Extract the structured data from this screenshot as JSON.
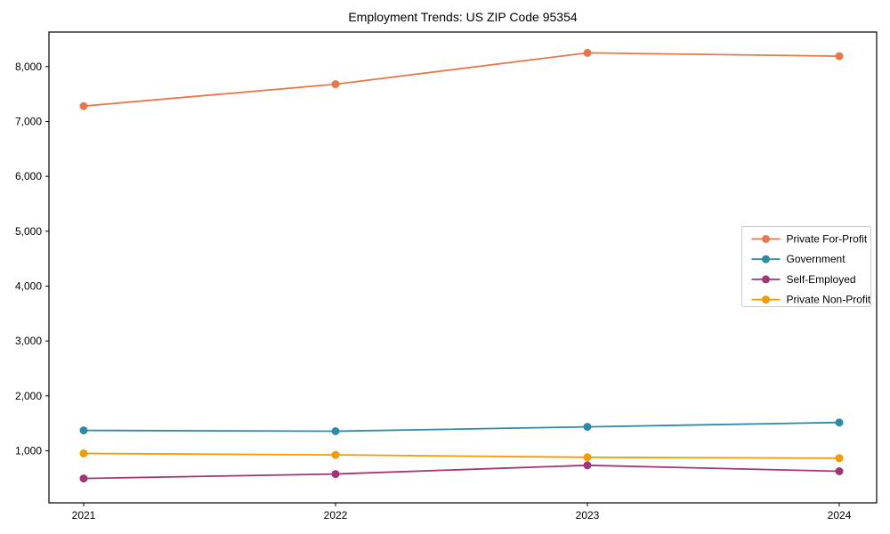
{
  "page": {
    "background": "#ffffff",
    "axis_color": "#000000",
    "legend_border_color": "#cccccc",
    "legend_background": "#ffffff"
  },
  "chart_data": {
    "type": "line",
    "title": "Employment Trends: US ZIP Code 95354",
    "xlabel": "",
    "ylabel": "",
    "x_categories": [
      "2021",
      "2022",
      "2023",
      "2024"
    ],
    "series": [
      {
        "name": "Private For-Profit",
        "color": "#E8774B",
        "values": [
          7280,
          7680,
          8250,
          8190
        ]
      },
      {
        "name": "Government",
        "color": "#2E8BA8",
        "values": [
          1370,
          1355,
          1435,
          1515
        ]
      },
      {
        "name": "Self-Employed",
        "color": "#A23577",
        "values": [
          495,
          575,
          735,
          625
        ]
      },
      {
        "name": "Private Non-Profit",
        "color": "#F29B05",
        "values": [
          950,
          925,
          880,
          865
        ]
      }
    ],
    "ylim": [
      50,
      8630
    ],
    "yticks": [
      1000,
      2000,
      3000,
      4000,
      5000,
      6000,
      7000,
      8000
    ],
    "ytick_labels": [
      "1,000",
      "2,000",
      "3,000",
      "4,000",
      "5,000",
      "6,000",
      "7,000",
      "8,000"
    ],
    "grid": false,
    "legend_position": "center-right",
    "marker": "circle",
    "marker_radius": 4.5,
    "line_width": 1.8
  }
}
